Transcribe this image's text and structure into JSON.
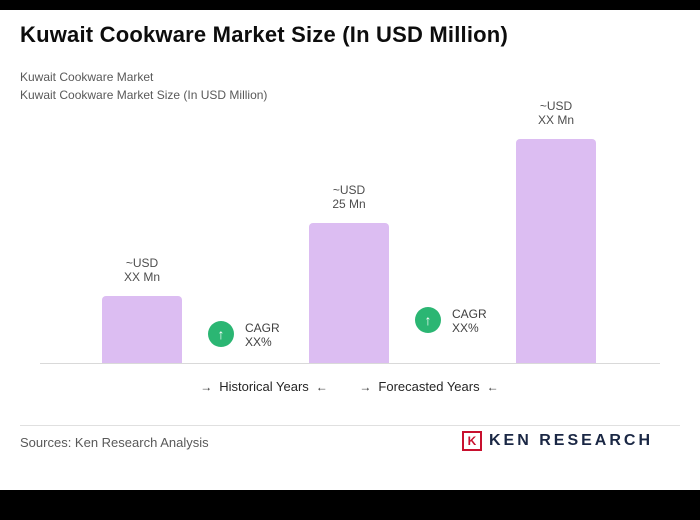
{
  "page": {
    "title": "Kuwait Cookware Market Size (In USD Million)",
    "subtitle_line1": "Kuwait Cookware Market",
    "subtitle_line2": "Kuwait Cookware Market Size (In USD Million)"
  },
  "chart_data": {
    "type": "bar",
    "title": "Kuwait Cookware Market Size (In USD Million)",
    "bar_color": "#dcbdf2",
    "badge_color": "#2bb673",
    "bars": [
      {
        "label_line1": "~USD",
        "label_line2": "XX Mn",
        "value_est": 12
      },
      {
        "label_line1": "~USD",
        "label_line2": "25 Mn",
        "value_est": 25
      },
      {
        "label_line1": "~USD",
        "label_line2": "XX Mn",
        "value_est": 40
      }
    ],
    "cagr_badges": [
      {
        "arrow": "↑",
        "line1": "CAGR",
        "line2": "XX%"
      },
      {
        "arrow": "↑",
        "line1": "CAGR",
        "line2": "XX%"
      }
    ],
    "axis_labels": [
      {
        "prefix_arrow": "→",
        "text": "Historical Years",
        "suffix_arrow": "←"
      },
      {
        "prefix_arrow": "→",
        "text": "Forecasted Years",
        "suffix_arrow": "←"
      }
    ],
    "ylim": [
      0,
      45
    ],
    "grid": false,
    "legend": false
  },
  "footer": {
    "sources": "Sources: Ken Research Analysis",
    "logo_emblem_letter": "K",
    "logo_wordmark": "KEN RESEARCH"
  }
}
